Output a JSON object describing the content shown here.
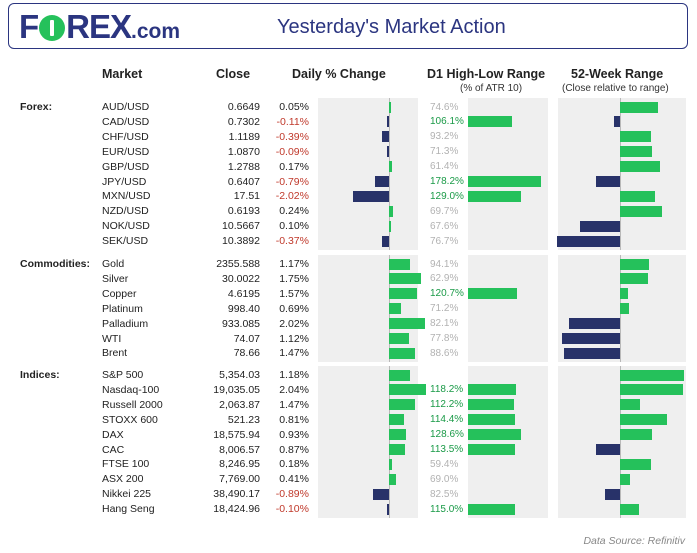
{
  "header": {
    "logo_letters": "FOREX",
    "logo_suffix": ".com",
    "title": "Yesterday's Market Action"
  },
  "columns": {
    "market": "Market",
    "close": "Close",
    "daily": "Daily % Change",
    "d1": "D1 High-Low Range",
    "d1_sub": "(% of ATR 10)",
    "wk52": "52-Week Range",
    "wk52_sub": "(Close relative to range)"
  },
  "source": "Data Source: Refinitiv",
  "colors": {
    "positive": "#25c15b",
    "negative": "#283269",
    "brand": "#2b3580"
  },
  "chart_data": {
    "type": "table",
    "groups": [
      {
        "label": "Forex:",
        "rows": [
          {
            "market": "AUD/USD",
            "close": "0.6649",
            "change": "0.05%",
            "change_value": 0.05,
            "atr": "74.6%",
            "atr_value": 74.6,
            "wk52_value": 0.6
          },
          {
            "market": "CAD/USD",
            "close": "0.7302",
            "change": "-0.11%",
            "change_value": -0.11,
            "atr": "106.1%",
            "atr_value": 106.1,
            "wk52_value": -0.1
          },
          {
            "market": "CHF/USD",
            "close": "1.1189",
            "change": "-0.39%",
            "change_value": -0.39,
            "atr": "93.2%",
            "atr_value": 93.2,
            "wk52_value": 0.48
          },
          {
            "market": "EUR/USD",
            "close": "1.0870",
            "change": "-0.09%",
            "change_value": -0.09,
            "atr": "71.3%",
            "atr_value": 71.3,
            "wk52_value": 0.5
          },
          {
            "market": "GBP/USD",
            "close": "1.2788",
            "change": "0.17%",
            "change_value": 0.17,
            "atr": "61.4%",
            "atr_value": 61.4,
            "wk52_value": 0.62
          },
          {
            "market": "JPY/USD",
            "close": "0.6407",
            "change": "-0.79%",
            "change_value": -0.79,
            "atr": "178.2%",
            "atr_value": 178.2,
            "wk52_value": -0.38
          },
          {
            "market": "MXN/USD",
            "close": "17.51",
            "change": "-2.02%",
            "change_value": -2.02,
            "atr": "129.0%",
            "atr_value": 129.0,
            "wk52_value": 0.55
          },
          {
            "market": "NZD/USD",
            "close": "0.6193",
            "change": "0.24%",
            "change_value": 0.24,
            "atr": "69.7%",
            "atr_value": 69.7,
            "wk52_value": 0.66
          },
          {
            "market": "NOK/USD",
            "close": "10.5667",
            "change": "0.10%",
            "change_value": 0.1,
            "atr": "67.6%",
            "atr_value": 67.6,
            "wk52_value": -0.63
          },
          {
            "market": "SEK/USD",
            "close": "10.3892",
            "change": "-0.37%",
            "change_value": -0.37,
            "atr": "76.7%",
            "atr_value": 76.7,
            "wk52_value": -0.98
          }
        ]
      },
      {
        "label": "Commodities:",
        "rows": [
          {
            "market": "Gold",
            "close": "2355.588",
            "change": "1.17%",
            "change_value": 1.17,
            "atr": "94.1%",
            "atr_value": 94.1,
            "wk52_value": 0.45
          },
          {
            "market": "Silver",
            "close": "30.0022",
            "change": "1.75%",
            "change_value": 1.75,
            "atr": "62.9%",
            "atr_value": 62.9,
            "wk52_value": 0.44
          },
          {
            "market": "Copper",
            "close": "4.6195",
            "change": "1.57%",
            "change_value": 1.57,
            "atr": "120.7%",
            "atr_value": 120.7,
            "wk52_value": 0.12
          },
          {
            "market": "Platinum",
            "close": "998.40",
            "change": "0.69%",
            "change_value": 0.69,
            "atr": "71.2%",
            "atr_value": 71.2,
            "wk52_value": 0.14
          },
          {
            "market": "Palladium",
            "close": "933.085",
            "change": "2.02%",
            "change_value": 2.02,
            "atr": "82.1%",
            "atr_value": 82.1,
            "wk52_value": -0.8
          },
          {
            "market": "WTI",
            "close": "74.07",
            "change": "1.12%",
            "change_value": 1.12,
            "atr": "77.8%",
            "atr_value": 77.8,
            "wk52_value": -0.9
          },
          {
            "market": "Brent",
            "close": "78.66",
            "change": "1.47%",
            "change_value": 1.47,
            "atr": "88.6%",
            "atr_value": 88.6,
            "wk52_value": -0.88
          }
        ]
      },
      {
        "label": "Indices:",
        "rows": [
          {
            "market": "S&P 500",
            "close": "5,354.03",
            "change": "1.18%",
            "change_value": 1.18,
            "atr": "",
            "atr_value": 0,
            "wk52_value": 1.0
          },
          {
            "market": "Nasdaq-100",
            "close": "19,035.05",
            "change": "2.04%",
            "change_value": 2.04,
            "atr": "118.2%",
            "atr_value": 118.2,
            "wk52_value": 0.98
          },
          {
            "market": "Russell 2000",
            "close": "2,063.87",
            "change": "1.47%",
            "change_value": 1.47,
            "atr": "112.2%",
            "atr_value": 112.2,
            "wk52_value": 0.32
          },
          {
            "market": "STOXX 600",
            "close": "521.23",
            "change": "0.81%",
            "change_value": 0.81,
            "atr": "114.4%",
            "atr_value": 114.4,
            "wk52_value": 0.73
          },
          {
            "market": "DAX",
            "close": "18,575.94",
            "change": "0.93%",
            "change_value": 0.93,
            "atr": "128.6%",
            "atr_value": 128.6,
            "wk52_value": 0.5
          },
          {
            "market": "CAC",
            "close": "8,006.57",
            "change": "0.87%",
            "change_value": 0.87,
            "atr": "113.5%",
            "atr_value": 113.5,
            "wk52_value": -0.38
          },
          {
            "market": "FTSE 100",
            "close": "8,246.95",
            "change": "0.18%",
            "change_value": 0.18,
            "atr": "59.4%",
            "atr_value": 59.4,
            "wk52_value": 0.48
          },
          {
            "market": "ASX 200",
            "close": "7,769.00",
            "change": "0.41%",
            "change_value": 0.41,
            "atr": "69.0%",
            "atr_value": 69.0,
            "wk52_value": 0.15
          },
          {
            "market": "Nikkei 225",
            "close": "38,490.17",
            "change": "-0.89%",
            "change_value": -0.89,
            "atr": "82.5%",
            "atr_value": 82.5,
            "wk52_value": -0.23
          },
          {
            "market": "Hang Seng",
            "close": "18,424.96",
            "change": "-0.10%",
            "change_value": -0.1,
            "atr": "115.0%",
            "atr_value": 115.0,
            "wk52_value": 0.29
          }
        ]
      }
    ]
  }
}
